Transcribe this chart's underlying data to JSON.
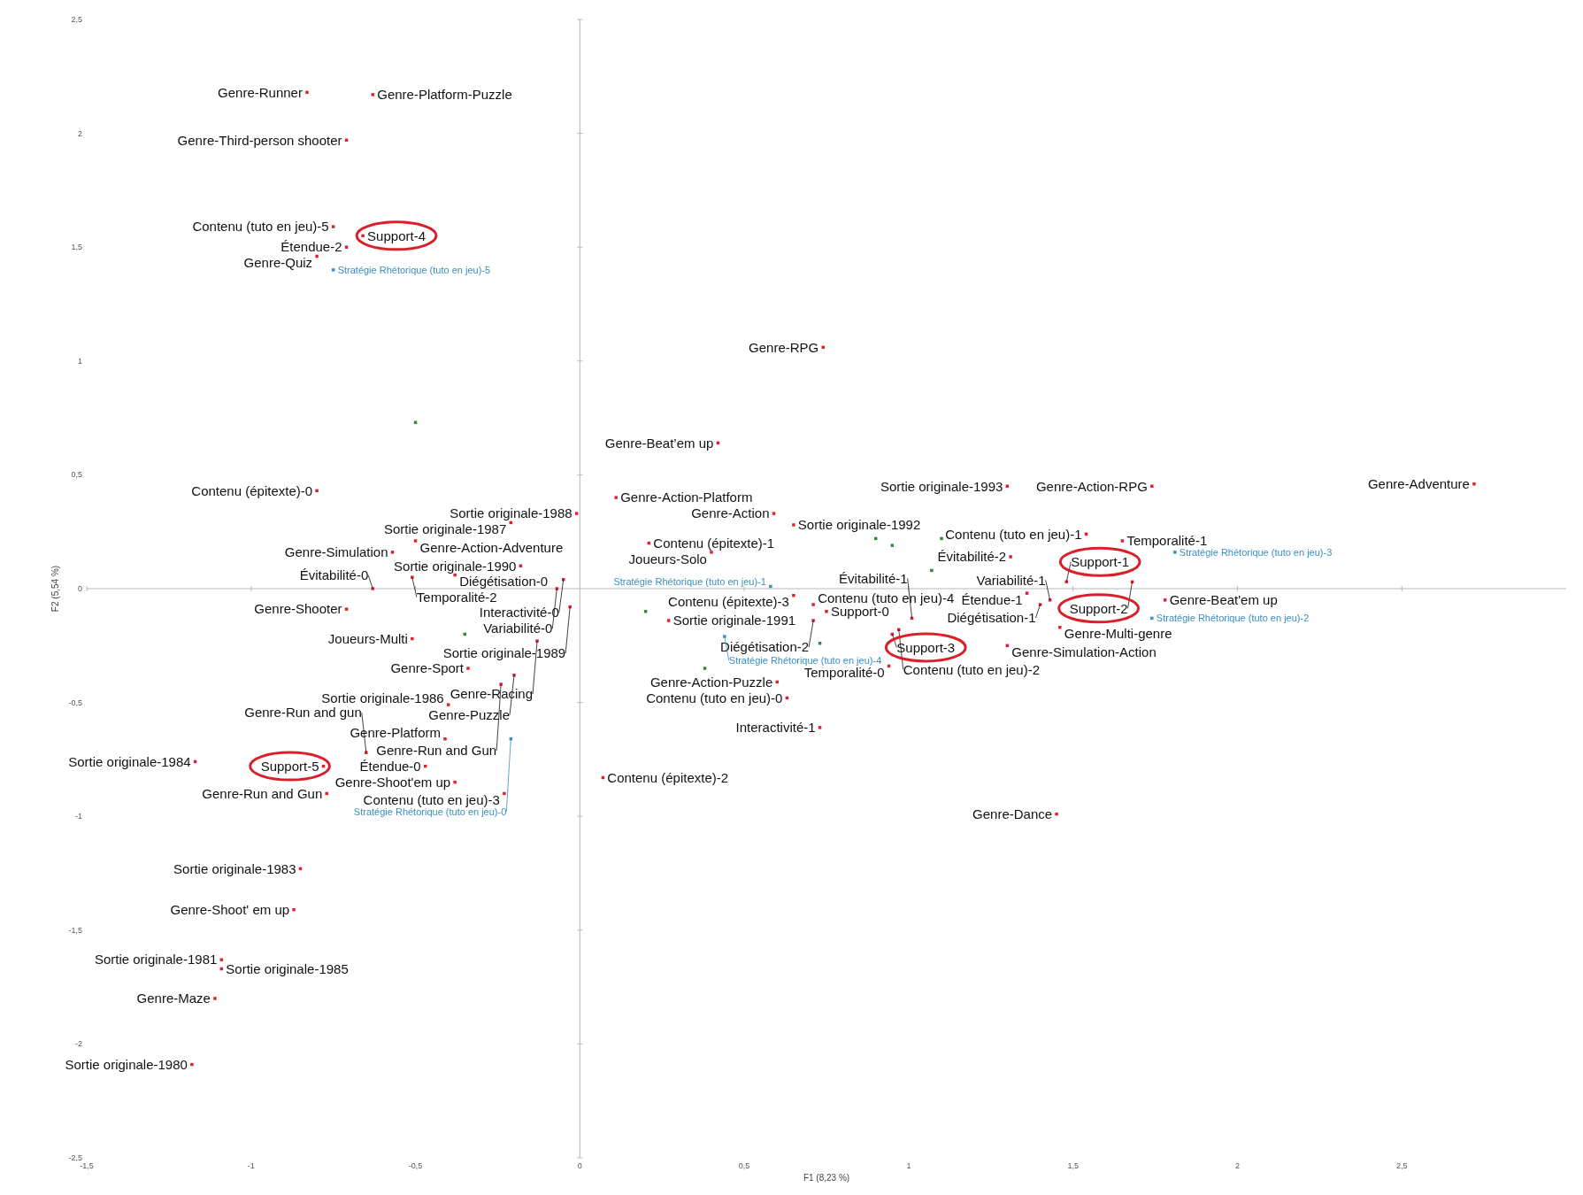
{
  "chart_data": {
    "type": "scatter",
    "xlabel": "F1 (8,23 %)",
    "ylabel": "F2 (5,54 %)",
    "marker": "square",
    "xlim": [
      -1.5,
      3
    ],
    "ylim": [
      -2.5,
      2.5
    ],
    "xticks": [
      {
        "value": -1.5,
        "label": "-1,5"
      },
      -1,
      {
        "value": -0.5,
        "label": "-0,5"
      },
      0,
      {
        "value": 0.5,
        "label": "0,5"
      },
      1,
      {
        "value": 1.5,
        "label": "1,5"
      },
      2,
      {
        "value": 2.5,
        "label": "2,5"
      }
    ],
    "yticks": [
      {
        "value": -2.5,
        "label": "-2,5"
      },
      -2,
      {
        "value": -1.5,
        "label": "-1,5"
      },
      -1,
      {
        "value": -0.5,
        "label": "-0,5"
      },
      0,
      {
        "value": 0.5,
        "label": "0,5"
      },
      1,
      {
        "value": 1.5,
        "label": "1,5"
      },
      2,
      {
        "value": 2.5,
        "label": "2,5"
      }
    ],
    "series": [
      {
        "color": "#e0202a",
        "x": [
          -0.83,
          -0.63,
          -0.71,
          -0.75,
          -0.71,
          -0.66,
          -0.8,
          -0.8,
          0.11,
          -0.01,
          -0.21,
          -0.5,
          -0.57,
          -0.18,
          -0.38,
          -0.51,
          -0.63,
          -0.05,
          -0.07,
          -0.71,
          -0.03,
          0.27,
          -0.51,
          -0.13,
          -0.34,
          -0.2,
          -0.24,
          -0.4,
          -0.41,
          -1.17,
          -0.65,
          -0.78,
          -0.47,
          -0.38,
          0.07,
          -0.77,
          -0.23,
          -0.85,
          -0.87,
          -1.09,
          -1.09,
          -1.11,
          -1.18,
          0.74,
          0.42,
          1.3,
          1.74,
          2.72,
          0.59,
          0.65,
          1.54,
          0.21,
          0.4,
          1.65,
          1.31,
          1.48,
          1.68,
          1.36,
          1.43,
          1.78,
          1.4,
          1.46,
          0.65,
          0.71,
          0.75,
          0.71,
          1.01,
          0.97,
          0.95,
          1.3,
          0.94,
          0.6,
          0.63,
          0.73,
          1.45
        ],
        "values": [
          2.18,
          2.17,
          1.97,
          1.59,
          1.5,
          1.55,
          1.46,
          0.43,
          0.4,
          0.33,
          0.29,
          0.21,
          0.16,
          0.1,
          0.06,
          0.05,
          0,
          0.04,
          0,
          -0.09,
          -0.08,
          -0.14,
          -0.22,
          -0.23,
          -0.35,
          -0.38,
          -0.42,
          -0.51,
          -0.66,
          -0.76,
          -0.72,
          -0.78,
          -0.78,
          -0.85,
          -0.83,
          -0.9,
          -0.9,
          -1.23,
          -1.41,
          -1.63,
          -1.67,
          -1.8,
          -2.09,
          1.06,
          0.64,
          0.45,
          0.45,
          0.46,
          0.33,
          0.28,
          0.24,
          0.2,
          0.16,
          0.21,
          0.14,
          0.03,
          0.03,
          -0.02,
          -0.05,
          -0.05,
          -0.07,
          -0.17,
          -0.03,
          -0.07,
          -0.1,
          -0.14,
          -0.13,
          -0.18,
          -0.2,
          -0.25,
          -0.34,
          -0.41,
          -0.48,
          -0.61,
          -0.99
        ]
      },
      {
        "color": "#3a8fc0",
        "x": [
          -0.75,
          0.58,
          1.81,
          1.74,
          0.44,
          -0.21
        ],
        "values": [
          1.4,
          0.01,
          0.16,
          -0.13,
          -0.21,
          -0.66
        ]
      },
      {
        "color": "#2e8b3a",
        "x": [
          -0.5,
          0.9,
          0.95,
          1.1,
          1.07,
          0.2,
          -0.35,
          0.73,
          0.38
        ],
        "values": [
          0.73,
          0.22,
          0.19,
          0.22,
          0.08,
          -0.1,
          -0.2,
          -0.24,
          -0.35
        ]
      }
    ],
    "annotations": [
      {
        "text": "Genre-Runner",
        "x": -0.83,
        "y": 2.18
      },
      {
        "text": "Genre-Platform-Puzzle",
        "x": -0.63,
        "y": 2.17
      },
      {
        "text": "Genre-Third-person shooter",
        "x": -0.71,
        "y": 1.97
      },
      {
        "text": "Contenu (tuto en jeu)-5",
        "x": -0.75,
        "y": 1.59
      },
      {
        "text": "Étendue-2",
        "x": -0.71,
        "y": 1.5
      },
      {
        "text": "Support-4",
        "x": -0.66,
        "y": 1.55
      },
      {
        "text": "Genre-Quiz",
        "x": -0.8,
        "y": 1.46
      },
      {
        "text": "Contenu (épitexte)-0",
        "x": -0.8,
        "y": 0.43
      },
      {
        "text": "Genre-Action-Platform",
        "x": 0.11,
        "y": 0.4
      },
      {
        "text": "Sortie originale-1988",
        "x": -0.01,
        "y": 0.33
      },
      {
        "text": "Sortie originale-1987",
        "x": -0.21,
        "y": 0.29
      },
      {
        "text": "Genre-Action-Adventure",
        "x": -0.5,
        "y": 0.21
      },
      {
        "text": "Genre-Simulation",
        "x": -0.57,
        "y": 0.16
      },
      {
        "text": "Sortie originale-1990",
        "x": -0.18,
        "y": 0.1
      },
      {
        "text": "Diégétisation-0",
        "x": -0.38,
        "y": 0.06
      },
      {
        "text": "Temporalité-2",
        "x": -0.51,
        "y": 0.05
      },
      {
        "text": "Évitabilité-0",
        "x": -0.63,
        "y": 0
      },
      {
        "text": "Interactivité-0",
        "x": -0.05,
        "y": 0.04
      },
      {
        "text": "Variabilité-0",
        "x": -0.07,
        "y": 0
      },
      {
        "text": "Genre-Shooter",
        "x": -0.71,
        "y": -0.09
      },
      {
        "text": "Sortie originale-1989",
        "x": -0.03,
        "y": -0.08
      },
      {
        "text": "Sortie originale-1991",
        "x": 0.27,
        "y": -0.14
      },
      {
        "text": "Joueurs-Multi",
        "x": -0.51,
        "y": -0.22
      },
      {
        "text": "Genre-Racing",
        "x": -0.13,
        "y": -0.23
      },
      {
        "text": "Genre-Sport",
        "x": -0.34,
        "y": -0.35
      },
      {
        "text": "Genre-Puzzle",
        "x": -0.2,
        "y": -0.38
      },
      {
        "text": "Genre-Run and Gun",
        "x": -0.24,
        "y": -0.42
      },
      {
        "text": "Sortie originale-1986",
        "x": -0.4,
        "y": -0.51
      },
      {
        "text": "Genre-Platform",
        "x": -0.41,
        "y": -0.66
      },
      {
        "text": "Sortie originale-1984",
        "x": -1.17,
        "y": -0.76
      },
      {
        "text": "Genre-Run and gun",
        "x": -0.65,
        "y": -0.72
      },
      {
        "text": "Support-5",
        "x": -0.78,
        "y": -0.78
      },
      {
        "text": "Étendue-0",
        "x": -0.47,
        "y": -0.78
      },
      {
        "text": "Genre-Shoot'em up",
        "x": -0.38,
        "y": -0.85
      },
      {
        "text": "Contenu (épitexte)-2",
        "x": 0.07,
        "y": -0.83
      },
      {
        "text": "Genre-Run and Gun",
        "x": -0.77,
        "y": -0.9
      },
      {
        "text": "Contenu (tuto en jeu)-3",
        "x": -0.23,
        "y": -0.9
      },
      {
        "text": "Sortie originale-1983",
        "x": -0.85,
        "y": -1.23
      },
      {
        "text": "Genre-Shoot' em up",
        "x": -0.87,
        "y": -1.41
      },
      {
        "text": "Sortie originale-1981",
        "x": -1.09,
        "y": -1.63
      },
      {
        "text": "Sortie originale-1985",
        "x": -1.09,
        "y": -1.67
      },
      {
        "text": "Genre-Maze",
        "x": -1.11,
        "y": -1.8
      },
      {
        "text": "Sortie originale-1980",
        "x": -1.18,
        "y": -2.09
      },
      {
        "text": "Genre-RPG",
        "x": 0.74,
        "y": 1.06
      },
      {
        "text": "Genre-Beat’em up",
        "x": 0.42,
        "y": 0.64
      },
      {
        "text": "Sortie originale-1993",
        "x": 1.3,
        "y": 0.45
      },
      {
        "text": "Genre-Action-RPG",
        "x": 1.74,
        "y": 0.45
      },
      {
        "text": "Genre-Adventure",
        "x": 2.72,
        "y": 0.46
      },
      {
        "text": "Genre-Action",
        "x": 0.59,
        "y": 0.33
      },
      {
        "text": "Sortie originale-1992",
        "x": 0.65,
        "y": 0.28
      },
      {
        "text": "Contenu (tuto en jeu)-1",
        "x": 1.54,
        "y": 0.24
      },
      {
        "text": "Contenu (épitexte)-1",
        "x": 0.21,
        "y": 0.2
      },
      {
        "text": "Joueurs-Solo",
        "x": 0.4,
        "y": 0.16
      },
      {
        "text": "Temporalité-1",
        "x": 1.65,
        "y": 0.21
      },
      {
        "text": "Évitabilité-2",
        "x": 1.31,
        "y": 0.14
      },
      {
        "text": "Support-1",
        "x": 1.48,
        "y": 0.03
      },
      {
        "text": "Support-2",
        "x": 1.68,
        "y": 0.03
      },
      {
        "text": "Étendue-1",
        "x": 1.36,
        "y": -0.02
      },
      {
        "text": "Variabilité-1",
        "x": 1.43,
        "y": -0.05
      },
      {
        "text": "Genre-Beat'em up",
        "x": 1.78,
        "y": -0.05
      },
      {
        "text": "Diégétisation-1",
        "x": 1.4,
        "y": -0.07
      },
      {
        "text": "Genre-Multi-genre",
        "x": 1.46,
        "y": -0.17
      },
      {
        "text": "Contenu (épitexte)-3",
        "x": 0.65,
        "y": -0.03
      },
      {
        "text": "Contenu (tuto en jeu)-4",
        "x": 0.71,
        "y": -0.07
      },
      {
        "text": "Support-0",
        "x": 0.75,
        "y": -0.1
      },
      {
        "text": "Diégétisation-2",
        "x": 0.71,
        "y": -0.14
      },
      {
        "text": "Évitabilité-1",
        "x": 1.01,
        "y": -0.13
      },
      {
        "text": "Contenu (tuto en jeu)-2",
        "x": 0.97,
        "y": -0.18
      },
      {
        "text": "Support-3",
        "x": 0.95,
        "y": -0.2
      },
      {
        "text": "Genre-Simulation-Action",
        "x": 1.3,
        "y": -0.25
      },
      {
        "text": "Temporalité-0",
        "x": 0.94,
        "y": -0.34
      },
      {
        "text": "Genre-Action-Puzzle",
        "x": 0.6,
        "y": -0.41
      },
      {
        "text": "Contenu (tuto en jeu)-0",
        "x": 0.63,
        "y": -0.48
      },
      {
        "text": "Interactivité-1",
        "x": 0.73,
        "y": -0.61
      },
      {
        "text": "Genre-Dance",
        "x": 1.45,
        "y": -0.99
      },
      {
        "text": "Stratégie Rhétorique (tuto en jeu)-5",
        "x": -0.75,
        "y": 1.4
      },
      {
        "text": "Stratégie Rhétorique (tuto en jeu)-1",
        "x": 0.58,
        "y": 0.01
      },
      {
        "text": "Stratégie Rhétorique (tuto en jeu)-3",
        "x": 1.81,
        "y": 0.16
      },
      {
        "text": "Stratégie Rhétorique (tuto en jeu)-2",
        "x": 1.74,
        "y": -0.13
      },
      {
        "text": "Stratégie Rhétorique (tuto en jeu)-4",
        "x": 0.44,
        "y": -0.21
      },
      {
        "text": "Stratégie Rhétorique (tuto en jeu)-0",
        "x": -0.21,
        "y": -0.66
      }
    ]
  }
}
